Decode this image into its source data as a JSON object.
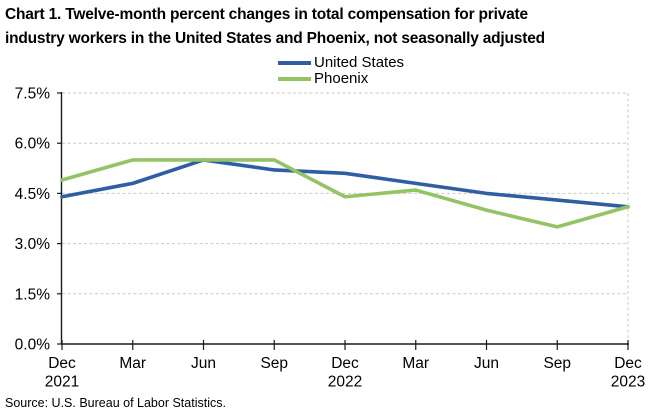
{
  "page": {
    "title_lines": [
      "Chart 1. Twelve-month percent changes in total compensation for private",
      "industry workers in the United States and Phoenix, not seasonally adjusted"
    ],
    "source": "Source: U.S. Bureau of Labor Statistics."
  },
  "colors": {
    "united_states": "#2F5EA3",
    "phoenix": "#93C464",
    "gridline": "#C9C9C9",
    "axis": "#1A1A1A",
    "text": "#000000"
  },
  "chart_data": {
    "type": "line",
    "title": "Chart 1. Twelve-month percent changes in total compensation for private industry workers in the United States and Phoenix, not seasonally adjusted",
    "categories": [
      "Dec 2021",
      "Mar 2022",
      "Jun 2022",
      "Sep 2022",
      "Dec 2022",
      "Mar 2023",
      "Jun 2023",
      "Sep 2023",
      "Dec 2023"
    ],
    "x_tick_labels": [
      [
        "Dec",
        "2021"
      ],
      [
        "Mar"
      ],
      [
        "Jun"
      ],
      [
        "Sep"
      ],
      [
        "Dec",
        "2022"
      ],
      [
        "Mar"
      ],
      [
        "Jun"
      ],
      [
        "Sep"
      ],
      [
        "Dec",
        "2023"
      ]
    ],
    "series": [
      {
        "name": "United States",
        "color_key": "united_states",
        "values": [
          4.4,
          4.8,
          5.5,
          5.2,
          5.1,
          4.8,
          4.5,
          4.3,
          4.1
        ]
      },
      {
        "name": "Phoenix",
        "color_key": "phoenix",
        "values": [
          4.9,
          5.5,
          5.5,
          5.5,
          4.4,
          4.6,
          4.0,
          3.5,
          4.1
        ]
      }
    ],
    "unit": "percent",
    "ylim": [
      0,
      7.5
    ],
    "y_ticks": [
      0,
      1.5,
      3.0,
      4.5,
      6.0,
      7.5
    ],
    "y_tick_labels": [
      "0.0%",
      "1.5%",
      "3.0%",
      "4.5%",
      "6.0%",
      "7.5%"
    ],
    "xlabel": "",
    "ylabel": "",
    "grid": "horizontal-dashed",
    "legend_position": "top-center"
  }
}
